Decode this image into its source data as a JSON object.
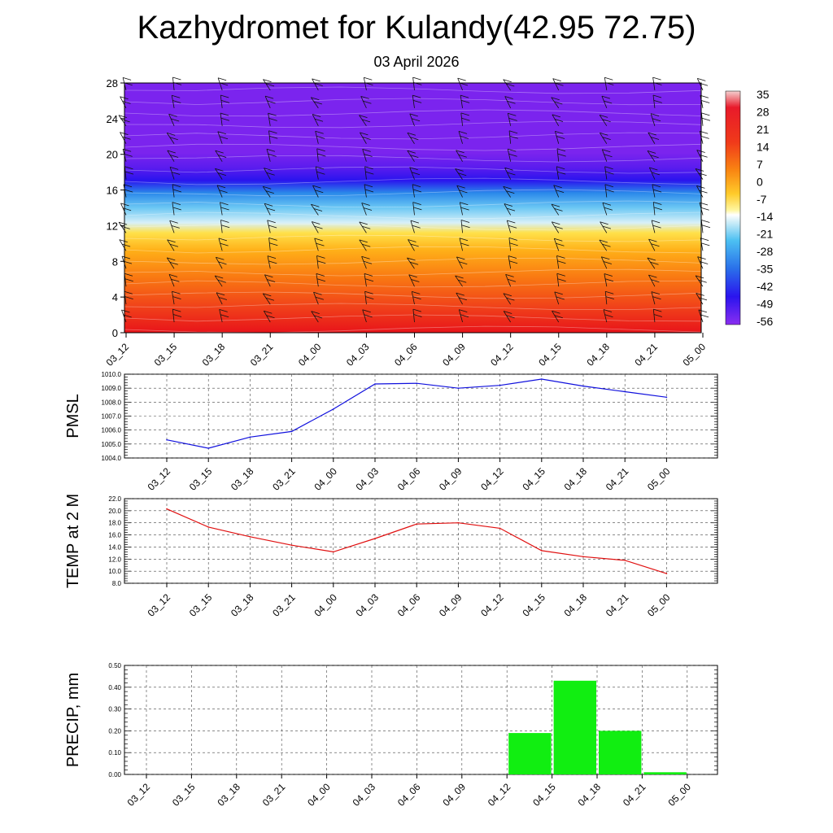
{
  "header": {
    "title": "Kazhydromet for Kulandy(42.95 72.75)",
    "date": "03 April 2026"
  },
  "time_labels": [
    "03_12",
    "03_15",
    "03_18",
    "03_21",
    "04_00",
    "04_03",
    "04_06",
    "04_09",
    "04_12",
    "04_15",
    "04_18",
    "04_21",
    "05_00"
  ],
  "chart_data": [
    {
      "type": "heatmap",
      "x": [
        "03_12",
        "03_15",
        "03_18",
        "03_21",
        "04_00",
        "04_03",
        "04_06",
        "04_09",
        "04_12",
        "04_15",
        "04_18",
        "04_21",
        "05_00"
      ],
      "ylim": [
        0,
        28
      ],
      "yticks": [
        "0",
        "4",
        "8",
        "12",
        "16",
        "20",
        "24",
        "28"
      ],
      "colorbar_labels": [
        "35",
        "28",
        "21",
        "14",
        "7",
        "0",
        "-7",
        "-14",
        "-21",
        "-28",
        "-35",
        "-42",
        "-49",
        "-56"
      ],
      "colors": {
        "warm": "#e8141a",
        "mid": "#ffe14a",
        "cool": "#3fb6f0",
        "cold": "#2a14ee",
        "top": "#7b24ee"
      },
      "wind_barbs": true
    },
    {
      "type": "line",
      "ylabel": "PMSL",
      "x": [
        "03_12",
        "03_15",
        "03_18",
        "03_21",
        "04_00",
        "04_03",
        "04_06",
        "04_09",
        "04_12",
        "04_15",
        "04_18",
        "04_21",
        "05_00"
      ],
      "values": [
        1005.3,
        1004.7,
        1005.5,
        1005.9,
        1007.5,
        1009.3,
        1009.35,
        1009.0,
        1009.2,
        1009.65,
        1009.15,
        1008.75,
        1008.35
      ],
      "ylim": [
        1004.0,
        1010.0
      ],
      "yticks": [
        "1004.0",
        "1005.0",
        "1006.0",
        "1007.0",
        "1008.0",
        "1009.0",
        "1010.0"
      ],
      "color": "#1010dd",
      "grid": true
    },
    {
      "type": "line",
      "ylabel": "TEMP at 2 M",
      "x": [
        "03_12",
        "03_15",
        "03_18",
        "03_21",
        "04_00",
        "04_03",
        "04_06",
        "04_09",
        "04_12",
        "04_15",
        "04_18",
        "04_21",
        "05_00"
      ],
      "values": [
        20.3,
        17.3,
        15.7,
        14.3,
        13.2,
        15.4,
        17.8,
        18.0,
        17.1,
        13.4,
        12.4,
        11.8,
        9.6
      ],
      "ylim": [
        8.0,
        22.0
      ],
      "yticks": [
        "8.0",
        "10.0",
        "12.0",
        "14.0",
        "16.0",
        "18.0",
        "20.0",
        "22.0"
      ],
      "color": "#e01010",
      "grid": true
    },
    {
      "type": "bar",
      "ylabel": "PRECIP, mm",
      "x": [
        "03_12",
        "03_15",
        "03_18",
        "03_21",
        "04_00",
        "04_03",
        "04_06",
        "04_09",
        "04_12",
        "04_15",
        "04_18",
        "04_21",
        "05_00"
      ],
      "values": [
        0,
        0,
        0,
        0,
        0,
        0,
        0,
        0,
        0,
        0.19,
        0.43,
        0.2,
        0.01
      ],
      "ylim": [
        0,
        0.5
      ],
      "yticks": [
        "0.00",
        "0.10",
        "0.20",
        "0.30",
        "0.40",
        "0.50"
      ],
      "color": "#11ee11",
      "grid": true
    }
  ]
}
